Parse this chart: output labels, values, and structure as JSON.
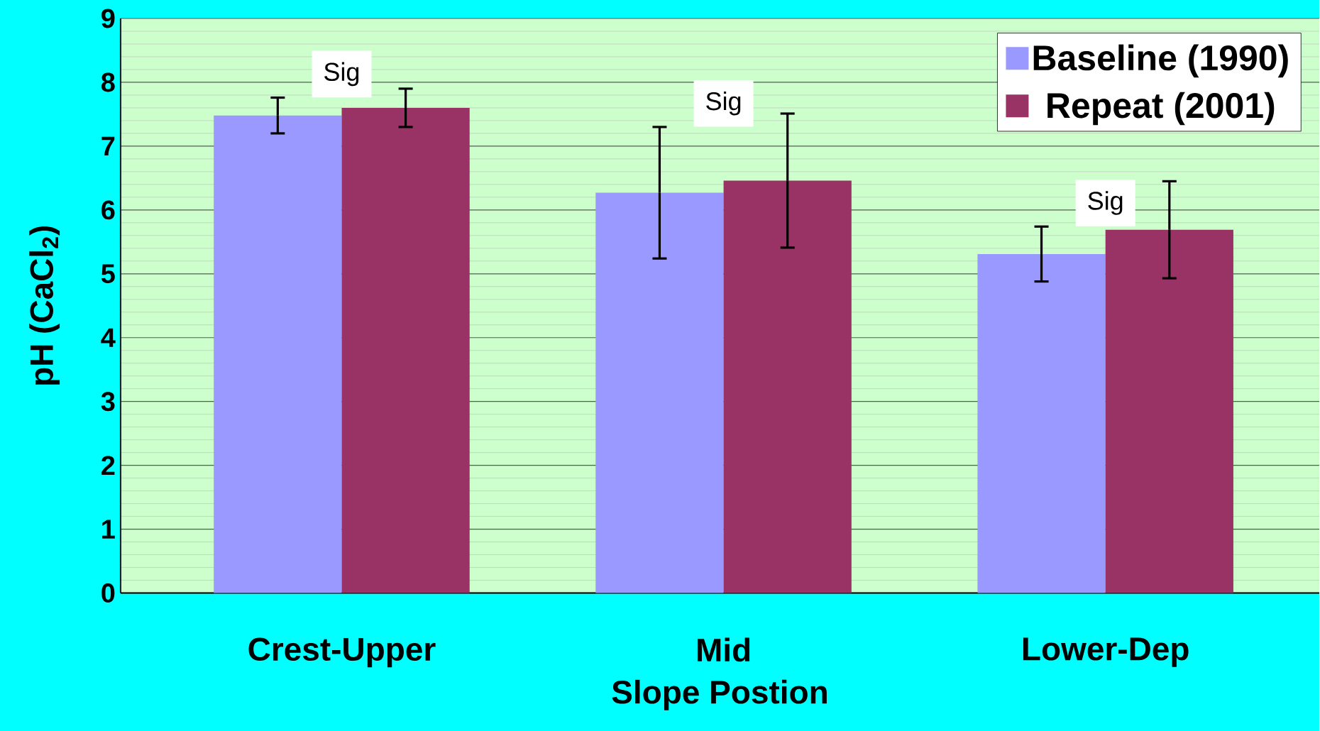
{
  "chart_data": {
    "type": "bar",
    "xlabel": "Slope Postion",
    "ylabel": "pH (CaCl$_{2}$)",
    "categories": [
      "Crest-Upper",
      "Mid",
      "Lower-Dep"
    ],
    "series": [
      {
        "name": "Baseline (1990)",
        "color": "#9999ff",
        "values": [
          7.48,
          6.27,
          5.31
        ],
        "errors": [
          0.28,
          1.03,
          0.43
        ]
      },
      {
        "name": "Repeat (2001)",
        "color": "#993366",
        "values": [
          7.6,
          6.46,
          5.69
        ],
        "errors": [
          0.3,
          1.05,
          0.76
        ]
      }
    ],
    "ylim": [
      0,
      9
    ],
    "yticks": [
      0,
      1,
      2,
      3,
      4,
      5,
      6,
      7,
      8,
      9
    ],
    "grid": "y",
    "legend": "top right",
    "annotations": [
      "Sig",
      "Sig",
      "Sig"
    ]
  }
}
